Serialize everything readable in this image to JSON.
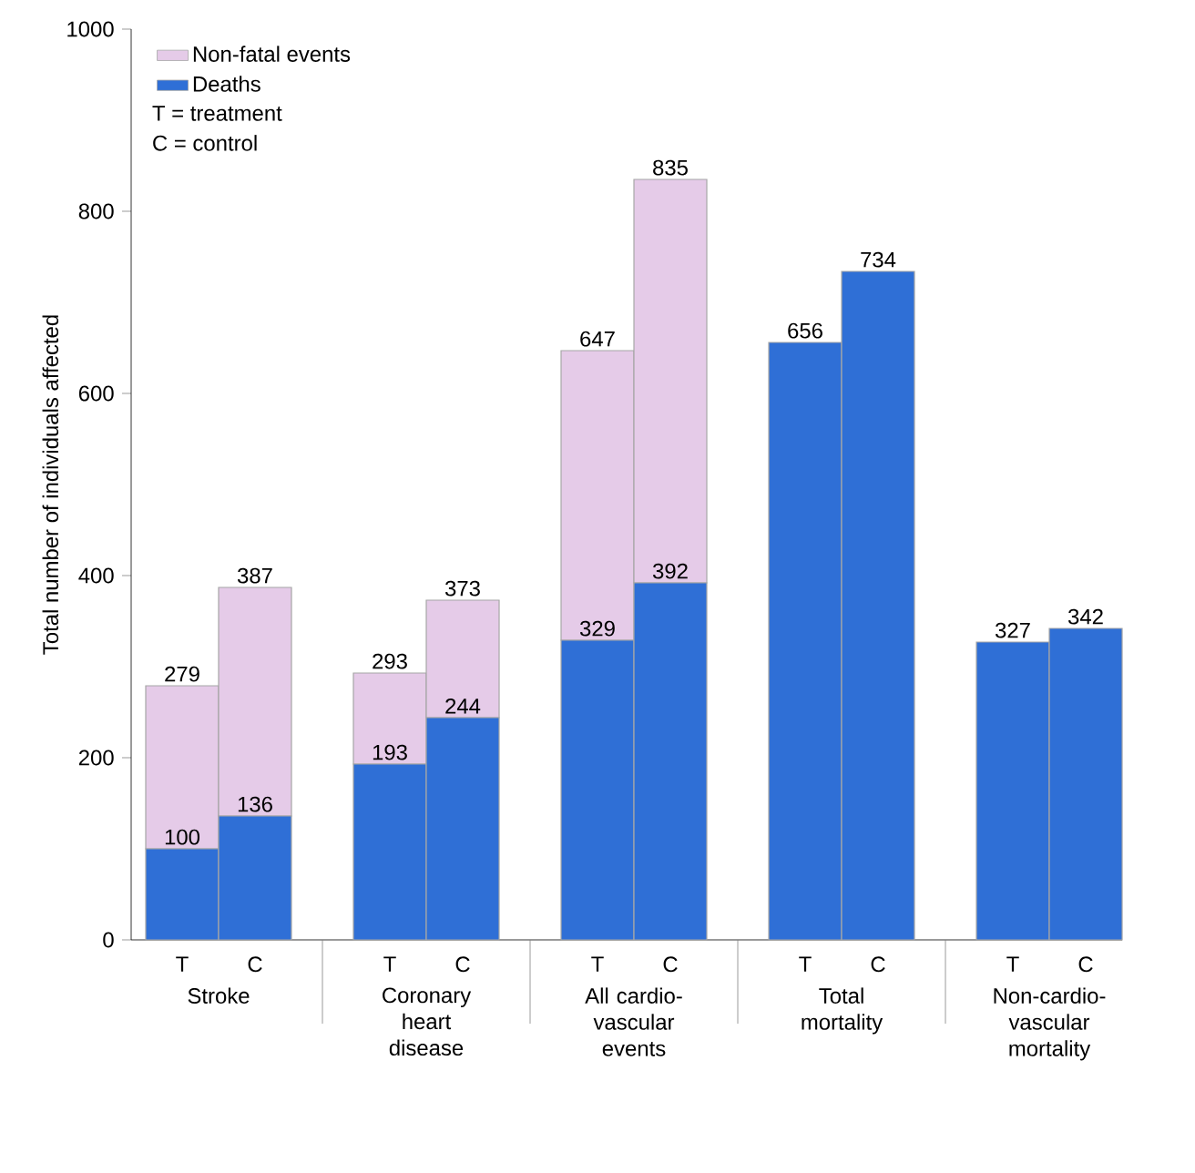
{
  "chart_data": {
    "type": "bar",
    "stacked": true,
    "ylabel": "Total number of individuals affected",
    "categories": [
      "T",
      "C",
      "T",
      "C",
      "T",
      "C",
      "T",
      "C",
      "T",
      "C"
    ],
    "series": [
      {
        "name": "Deaths",
        "color": "#2f6fd6",
        "values": [
          100,
          136,
          193,
          244,
          329,
          392,
          656,
          734,
          327,
          342
        ],
        "value_labels": [
          "100",
          "136",
          "193",
          "244",
          "329",
          "392",
          null,
          null,
          null,
          null
        ]
      },
      {
        "name": "Non-fatal events",
        "color": "#e5cbe8",
        "values": [
          179,
          251,
          100,
          129,
          318,
          443,
          null,
          null,
          null,
          null
        ]
      }
    ],
    "totals": [
      "279",
      "387",
      "293",
      "373",
      "647",
      "835",
      "656",
      "734",
      "327",
      "342"
    ],
    "annotations": [
      "T = treatment",
      "C = control",
      "Stroke",
      "Coronary heart disease",
      "All cardio-vascular events",
      "Total mortality",
      "Non-cardio-vascular mortality"
    ],
    "ylim": [
      0,
      1000
    ],
    "yticks": [
      0,
      200,
      400,
      600,
      800,
      1000
    ],
    "legend": "top left",
    "grid": false
  }
}
